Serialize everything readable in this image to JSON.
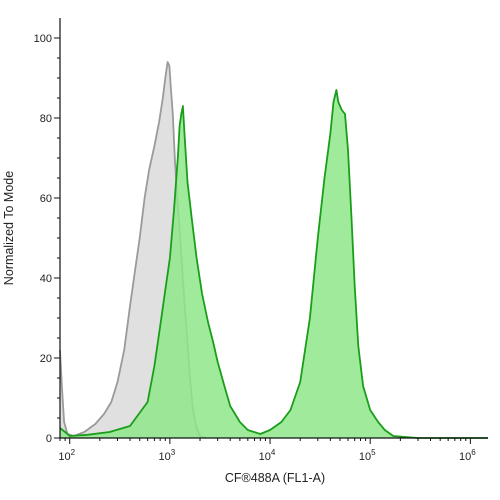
{
  "chart_data": {
    "type": "area",
    "xlabel": "CF®488A (FL1-A)",
    "ylabel": "Normalized To Mode",
    "xscale": "log",
    "xlim": [
      80,
      1500000
    ],
    "ylim": [
      0,
      105
    ],
    "yticks": [
      0,
      20,
      40,
      60,
      80,
      100
    ],
    "xticks": [
      {
        "value": 100,
        "base": "10",
        "exp": "2"
      },
      {
        "value": 1000,
        "base": "10",
        "exp": "3"
      },
      {
        "value": 10000,
        "base": "10",
        "exp": "4"
      },
      {
        "value": 100000,
        "base": "10",
        "exp": "5"
      },
      {
        "value": 1000000,
        "base": "10",
        "exp": "6"
      }
    ],
    "grid": false,
    "series": [
      {
        "fill": "#e0e0e0",
        "stroke": "#9a9a9a",
        "points": [
          [
            80,
            22
          ],
          [
            84,
            12
          ],
          [
            88,
            4
          ],
          [
            95,
            1
          ],
          [
            110,
            0.5
          ],
          [
            140,
            1.5
          ],
          [
            180,
            3.5
          ],
          [
            220,
            6
          ],
          [
            260,
            9
          ],
          [
            300,
            14
          ],
          [
            350,
            22
          ],
          [
            400,
            33
          ],
          [
            450,
            42
          ],
          [
            500,
            50
          ],
          [
            560,
            60
          ],
          [
            620,
            67
          ],
          [
            700,
            73
          ],
          [
            780,
            79
          ],
          [
            850,
            85
          ],
          [
            900,
            90
          ],
          [
            950,
            94
          ],
          [
            990,
            93
          ],
          [
            1020,
            88
          ],
          [
            1070,
            81
          ],
          [
            1120,
            70
          ],
          [
            1200,
            58
          ],
          [
            1300,
            46
          ],
          [
            1400,
            34
          ],
          [
            1500,
            24
          ],
          [
            1600,
            14
          ],
          [
            1700,
            7
          ],
          [
            1850,
            2.5
          ],
          [
            2000,
            0.5
          ],
          [
            2300,
            0
          ]
        ]
      },
      {
        "fill": "#8ee88a",
        "fill_opacity": 0.85,
        "stroke": "#1a9e1a",
        "points": [
          [
            80,
            2.5
          ],
          [
            90,
            1.5
          ],
          [
            100,
            0.5
          ],
          [
            150,
            0.8
          ],
          [
            250,
            1.5
          ],
          [
            400,
            3
          ],
          [
            600,
            9
          ],
          [
            700,
            18
          ],
          [
            800,
            28
          ],
          [
            900,
            37
          ],
          [
            1000,
            45
          ],
          [
            1100,
            57
          ],
          [
            1200,
            70
          ],
          [
            1250,
            78
          ],
          [
            1300,
            81
          ],
          [
            1350,
            83
          ],
          [
            1400,
            76
          ],
          [
            1500,
            64
          ],
          [
            1650,
            55
          ],
          [
            1850,
            45
          ],
          [
            2100,
            36
          ],
          [
            2400,
            29
          ],
          [
            2700,
            24
          ],
          [
            3000,
            19
          ],
          [
            3500,
            13
          ],
          [
            4000,
            8
          ],
          [
            5000,
            4
          ],
          [
            6000,
            2
          ],
          [
            8000,
            1
          ],
          [
            10000,
            2
          ],
          [
            13000,
            4
          ],
          [
            16000,
            7
          ],
          [
            20000,
            14
          ],
          [
            25000,
            30
          ],
          [
            30000,
            50
          ],
          [
            35000,
            65
          ],
          [
            40000,
            76
          ],
          [
            43000,
            84
          ],
          [
            46000,
            87
          ],
          [
            48000,
            84
          ],
          [
            52000,
            82
          ],
          [
            56000,
            81
          ],
          [
            60000,
            72
          ],
          [
            65000,
            55
          ],
          [
            70000,
            38
          ],
          [
            76000,
            23
          ],
          [
            85000,
            13
          ],
          [
            100000,
            7
          ],
          [
            120000,
            4
          ],
          [
            140000,
            2
          ],
          [
            170000,
            0.5
          ],
          [
            300000,
            0
          ],
          [
            1500000,
            0
          ]
        ]
      }
    ]
  }
}
